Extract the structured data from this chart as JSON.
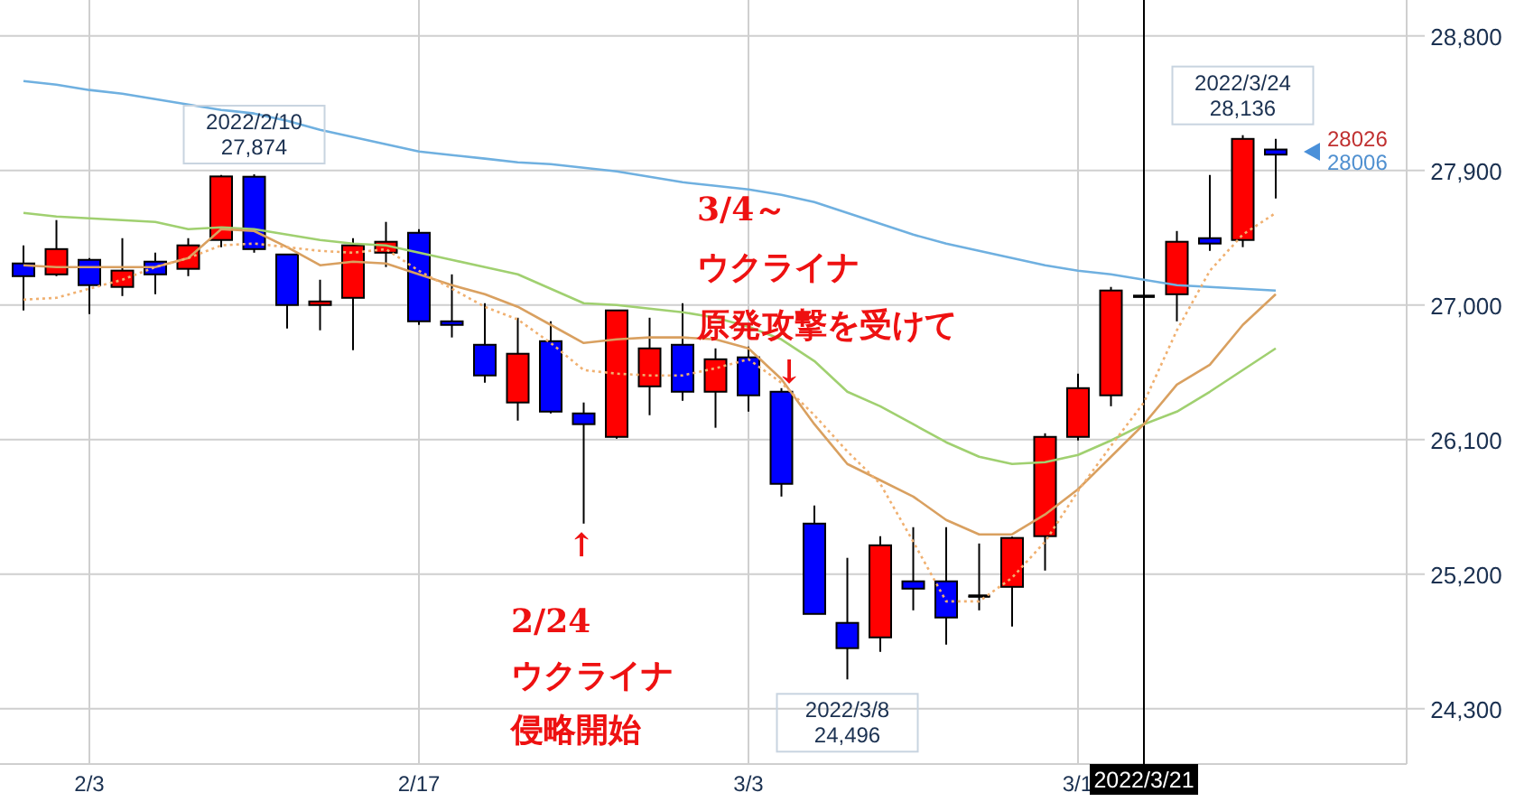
{
  "chart_data": {
    "type": "candlestick",
    "categories": [
      null,
      null,
      "2/3",
      null,
      null,
      null,
      null,
      null,
      null,
      null,
      null,
      null,
      "2/17",
      null,
      null,
      null,
      null,
      null,
      null,
      null,
      null,
      null,
      "3/3",
      null,
      null,
      null,
      null,
      null,
      null,
      null,
      null,
      null,
      "3/1",
      null,
      "2022/3/21",
      null,
      null,
      null,
      null
    ],
    "ohlc": [
      [
        27278,
        27399,
        26964,
        27193
      ],
      [
        27205,
        27568,
        27193,
        27374
      ],
      [
        27302,
        27314,
        26940,
        27133
      ],
      [
        27121,
        27447,
        27060,
        27230
      ],
      [
        27290,
        27350,
        27072,
        27205
      ],
      [
        27242,
        27447,
        27193,
        27399
      ],
      [
        27435,
        27870,
        27387,
        27860
      ],
      [
        27858,
        27874,
        27350,
        27374
      ],
      [
        27338,
        27338,
        26843,
        27000
      ],
      [
        27000,
        27169,
        26831,
        27024
      ],
      [
        27048,
        27447,
        26698,
        27399
      ],
      [
        27350,
        27556,
        27254,
        27423
      ],
      [
        27483,
        27507,
        26867,
        26891
      ],
      [
        26891,
        27205,
        26783,
        26867
      ],
      [
        26734,
        27012,
        26480,
        26529
      ],
      [
        26348,
        26915,
        26227,
        26674
      ],
      [
        26758,
        26891,
        26275,
        26287
      ],
      [
        26275,
        26348,
        25538,
        26203
      ],
      [
        26118,
        26964,
        26106,
        26964
      ],
      [
        26456,
        26915,
        26263,
        26710
      ],
      [
        26734,
        27012,
        26360,
        26420
      ],
      [
        26420,
        26710,
        26179,
        26637
      ],
      [
        26650,
        26722,
        26287,
        26396
      ],
      [
        26420,
        26444,
        25719,
        25804
      ],
      [
        25538,
        25659,
        24934,
        24934
      ],
      [
        24874,
        25309,
        24496,
        24705
      ],
      [
        24777,
        25454,
        24681,
        25393
      ],
      [
        25152,
        25514,
        24958,
        25103
      ],
      [
        25152,
        25514,
        24729,
        24910
      ],
      [
        25055,
        25405,
        24958,
        25055
      ],
      [
        25115,
        25450,
        24850,
        25442
      ],
      [
        25454,
        26142,
        25224,
        26118
      ],
      [
        26118,
        26541,
        26094,
        26444
      ],
      [
        26396,
        27121,
        26323,
        27097
      ],
      [
        27060,
        27072,
        27012,
        27060
      ],
      [
        27072,
        27495,
        26891,
        27423
      ],
      [
        27447,
        27870,
        27362,
        27411
      ],
      [
        27435,
        28136,
        27387,
        28111
      ],
      [
        28040,
        28111,
        27713,
        28006
      ]
    ],
    "colors": [
      "#0000ff",
      "#ff0000",
      "#0000ff",
      "#ff0000",
      "#0000ff",
      "#ff0000",
      "#ff0000",
      "#0000ff",
      "#0000ff",
      "#ff0000",
      "#ff0000",
      "#ff0000",
      "#0000ff",
      "#0000ff",
      "#0000ff",
      "#ff0000",
      "#0000ff",
      "#0000ff",
      "#ff0000",
      "#ff0000",
      "#0000ff",
      "#ff0000",
      "#0000ff",
      "#0000ff",
      "#0000ff",
      "#0000ff",
      "#ff0000",
      "#0000ff",
      "#0000ff",
      "#000000",
      "#ff0000",
      "#ff0000",
      "#ff0000",
      "#ff0000",
      "#000000",
      "#ff0000",
      "#0000ff",
      "#ff0000",
      "#0000ff"
    ],
    "series": [
      {
        "type": "line",
        "color": "#6fb0e0",
        "values": [
          28498,
          28474,
          28438,
          28413,
          28377,
          28341,
          28305,
          28281,
          28232,
          28172,
          28124,
          28075,
          28027,
          28003,
          27979,
          27954,
          27942,
          27918,
          27894,
          27858,
          27821,
          27797,
          27773,
          27737,
          27689,
          27616,
          27544,
          27471,
          27411,
          27362,
          27314,
          27266,
          27229,
          27205,
          27169,
          27133,
          27121,
          27109,
          27097
        ]
      },
      {
        "type": "line",
        "color": "#a0d070",
        "values": [
          27616,
          27592,
          27580,
          27568,
          27556,
          27507,
          27519,
          27507,
          27471,
          27435,
          27411,
          27399,
          27350,
          27302,
          27254,
          27205,
          27109,
          27012,
          27000,
          26976,
          26952,
          26915,
          26855,
          26770,
          26625,
          26420,
          26323,
          26203,
          26082,
          25985,
          25937,
          25949,
          25997,
          26094,
          26203,
          26287,
          26420,
          26565,
          26710
        ]
      },
      {
        "type": "line",
        "color": "#d9a060",
        "values": [
          27266,
          27254,
          27254,
          27254,
          27254,
          27314,
          27507,
          27495,
          27387,
          27266,
          27290,
          27278,
          27205,
          27133,
          27072,
          26988,
          26867,
          26746,
          26770,
          26783,
          26783,
          26770,
          26710,
          26505,
          26203,
          25937,
          25828,
          25719,
          25562,
          25466,
          25466,
          25599,
          25768,
          25985,
          26203,
          26468,
          26601,
          26867,
          27072
        ]
      },
      {
        "type": "line",
        "color": "#f0b070",
        "line_style": "dotted",
        "values": [
          27036,
          27048,
          27109,
          27169,
          27254,
          27314,
          27399,
          27411,
          27387,
          27362,
          27350,
          27374,
          27229,
          27109,
          26988,
          26903,
          26746,
          26565,
          26541,
          26529,
          26529,
          26577,
          26637,
          26480,
          26263,
          26021,
          25804,
          25417,
          25018,
          25018,
          25176,
          25417,
          25756,
          26058,
          26348,
          26831,
          27229,
          27471,
          27616
        ]
      }
    ],
    "ylim": [
      23930,
      29040
    ],
    "yticks": [
      {
        "value": 24300,
        "label": "24,300"
      },
      {
        "value": 25200,
        "label": "25,200"
      },
      {
        "value": 26100,
        "label": "26,100"
      },
      {
        "value": 27000,
        "label": "27,000"
      },
      {
        "value": 27900,
        "label": "27,900"
      },
      {
        "value": 28800,
        "label": "28,800"
      }
    ],
    "grid": true,
    "ref_lines": [
      {
        "axis": "x",
        "value": "2022/3/21",
        "color": "#000000"
      }
    ],
    "annotations": [
      {
        "text": "2022/2/10\n27,874",
        "y": 27874
      },
      {
        "text": "2022/3/24\n28,136",
        "y": 28136
      },
      {
        "text": "2022/3/8\n24,496",
        "y": 24496
      },
      "↑",
      "2/24",
      "ウクライナ",
      "侵略開始",
      "3/4～",
      "ウクライナ",
      "原発攻撃を受けて",
      "↓",
      "28026",
      "28006"
    ]
  }
}
